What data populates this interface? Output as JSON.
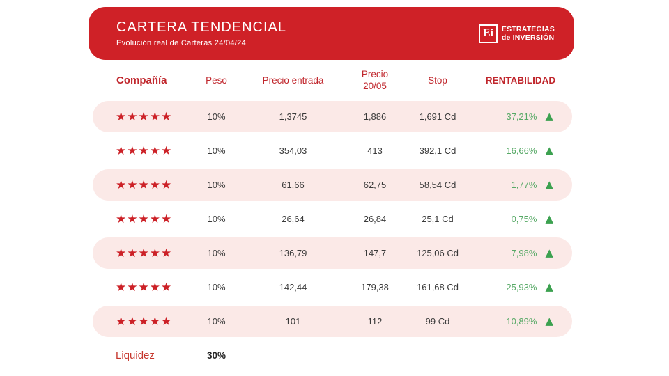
{
  "header": {
    "title": "CARTERA TENDENCIAL",
    "subtitle": "Evolución real de Carteras 24/04/24",
    "logo": {
      "monogram": "Ei",
      "line1": "ESTRATEGIAS",
      "line2": "de INVERSIÓN"
    }
  },
  "chart_data": {
    "type": "table",
    "title": "CARTERA TENDENCIAL",
    "subtitle": "Evolución real de Carteras 24/04/24",
    "columns": {
      "company": "Compañía",
      "peso": "Peso",
      "entrada": "Precio entrada",
      "precio_l1": "Precio",
      "precio_l2": "20/05",
      "stop": "Stop",
      "renta": "RENTABILIDAD"
    },
    "rows": [
      {
        "stars": "★★★★★",
        "rating": 5,
        "peso": "10%",
        "entrada": "1,3745",
        "precio": "1,886",
        "stop": "1,691 Cd",
        "renta": "37,21%",
        "direction": "up"
      },
      {
        "stars": "★★★★★",
        "rating": 5,
        "peso": "10%",
        "entrada": "354,03",
        "precio": "413",
        "stop": "392,1 Cd",
        "renta": "16,66%",
        "direction": "up"
      },
      {
        "stars": "★★★★★",
        "rating": 5,
        "peso": "10%",
        "entrada": "61,66",
        "precio": "62,75",
        "stop": "58,54 Cd",
        "renta": "1,77%",
        "direction": "up"
      },
      {
        "stars": "★★★★★",
        "rating": 5,
        "peso": "10%",
        "entrada": "26,64",
        "precio": "26,84",
        "stop": "25,1 Cd",
        "renta": "0,75%",
        "direction": "up"
      },
      {
        "stars": "★★★★★",
        "rating": 5,
        "peso": "10%",
        "entrada": "136,79",
        "precio": "147,7",
        "stop": "125,06 Cd",
        "renta": "7,98%",
        "direction": "up"
      },
      {
        "stars": "★★★★★",
        "rating": 5,
        "peso": "10%",
        "entrada": "142,44",
        "precio": "179,38",
        "stop": "161,68 Cd",
        "renta": "25,93%",
        "direction": "up"
      },
      {
        "stars": "★★★★★",
        "rating": 5,
        "peso": "10%",
        "entrada": "101",
        "precio": "112",
        "stop": "99 Cd",
        "renta": "10,89%",
        "direction": "up"
      }
    ],
    "footer": {
      "label": "Liquidez",
      "value": "30%"
    }
  },
  "colors": {
    "brand_red": "#cf2127",
    "header_text_red": "#c0262c",
    "row_pink": "#fbe9e7",
    "value_text": "#3a3a3a",
    "green_text": "#57a966",
    "green_triangle": "#3ca150"
  },
  "icons": {
    "star": "★",
    "up_triangle": "▲"
  }
}
